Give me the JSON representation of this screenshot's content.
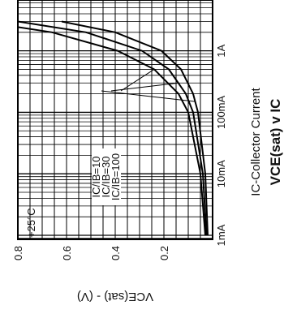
{
  "chart_data": {
    "type": "line",
    "title": "VCE(sat) v IC",
    "xlabel": "IC-Collector Current",
    "ylabel": "VCE(sat) - (V)",
    "x_scale": "log",
    "xlim": [
      "1mA",
      "1A"
    ],
    "ylim": [
      0,
      0.8
    ],
    "grid": true,
    "x_ticks": [
      "1mA",
      "10mA",
      "100mA",
      "1A"
    ],
    "y_ticks": [
      "0.8",
      "0.6",
      "0.4",
      "0.2"
    ],
    "annotations": [
      "+25°C"
    ],
    "series": [
      {
        "name": "IC/IB=10",
        "x": [
          0.001,
          0.01,
          0.1,
          0.2,
          0.5,
          1.0,
          2.0,
          3.0
        ],
        "y": [
          0.02,
          0.03,
          0.06,
          0.08,
          0.13,
          0.21,
          0.4,
          0.62
        ]
      },
      {
        "name": "IC/IB=30",
        "x": [
          0.001,
          0.01,
          0.1,
          0.2,
          0.5,
          1.0,
          2.0,
          3.0
        ],
        "y": [
          0.025,
          0.04,
          0.08,
          0.11,
          0.18,
          0.29,
          0.52,
          0.8
        ]
      },
      {
        "name": "IC/IB=100",
        "x": [
          0.001,
          0.01,
          0.1,
          0.2,
          0.5,
          1.0,
          2.0,
          3.0
        ],
        "y": [
          0.03,
          0.05,
          0.1,
          0.14,
          0.24,
          0.39,
          0.66,
          0.95
        ]
      }
    ]
  }
}
